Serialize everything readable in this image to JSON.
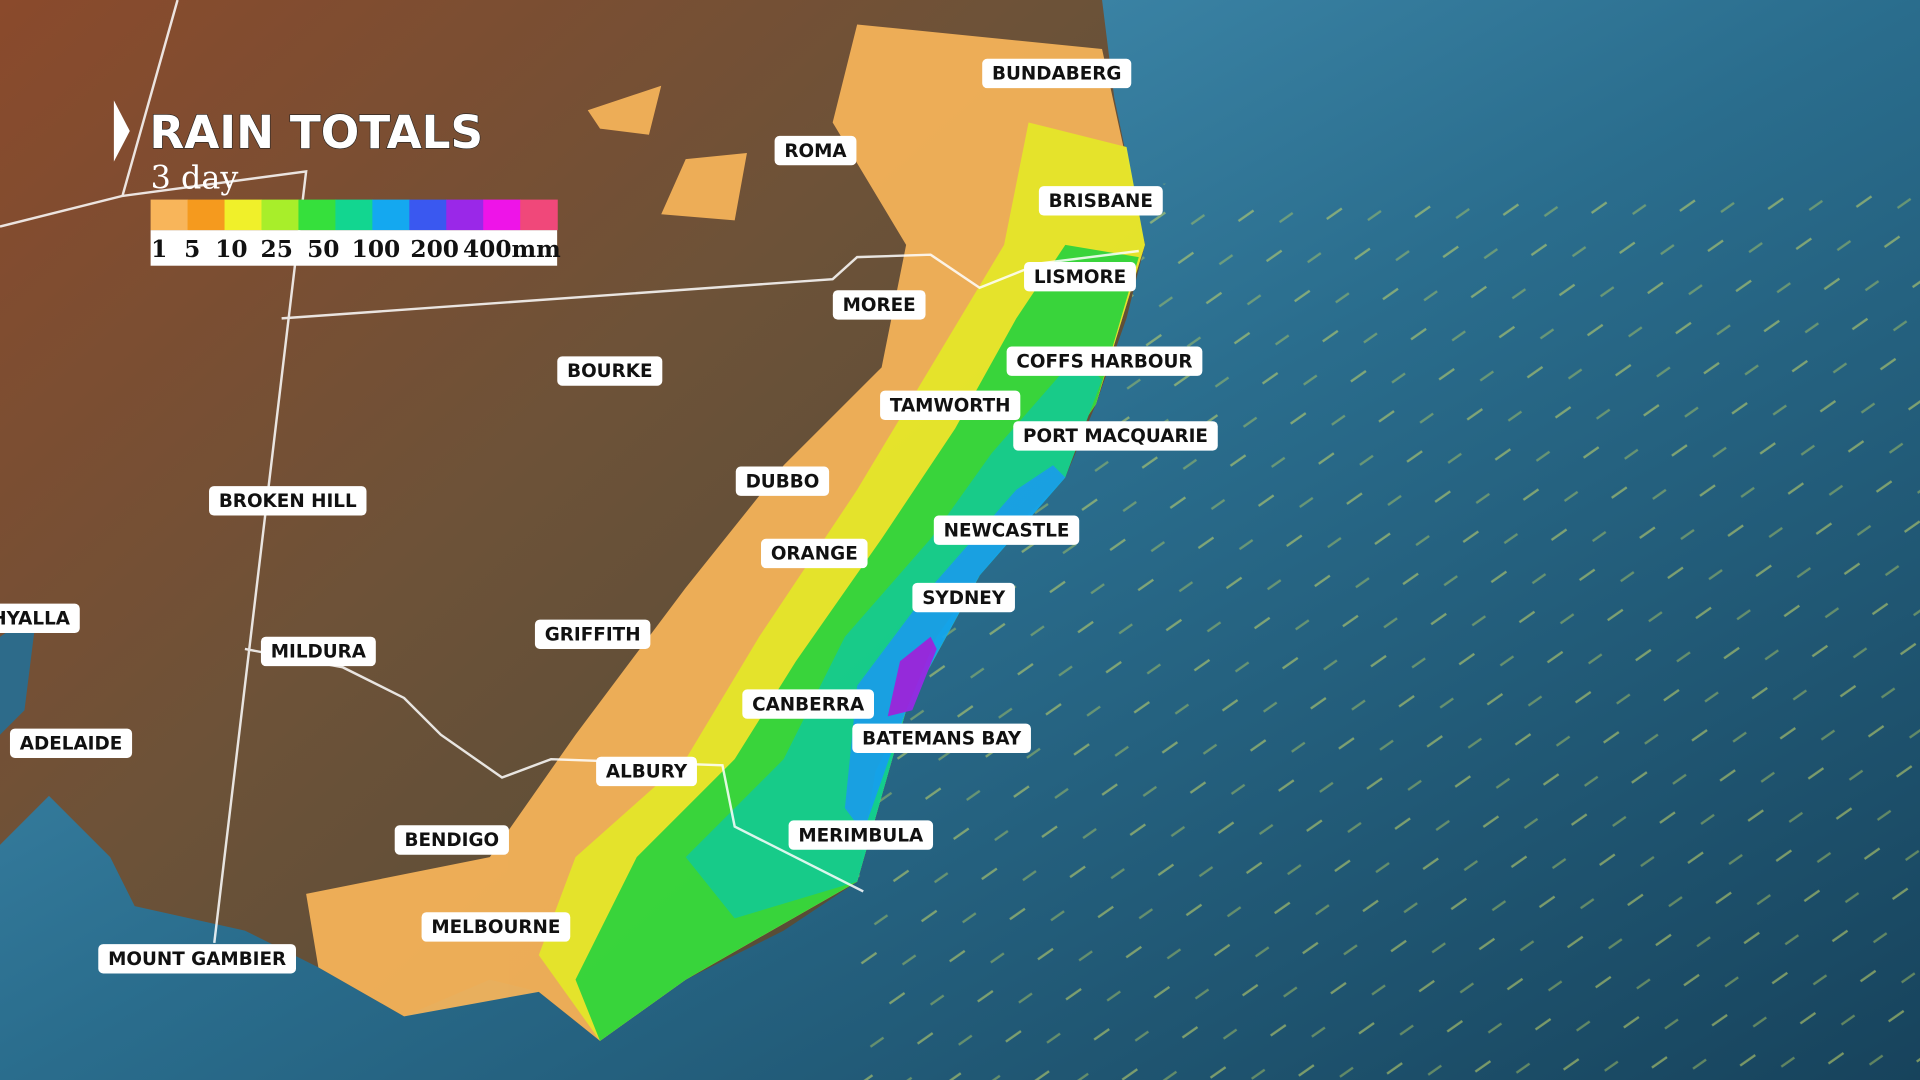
{
  "title": "RAIN TOTALS",
  "subtitle": "3 day",
  "legend": {
    "colors": [
      "#f8b55a",
      "#f59a1e",
      "#f0f02a",
      "#a8ee2a",
      "#36e03c",
      "#12d690",
      "#14a8f0",
      "#3a58f0",
      "#9a28e8",
      "#ee14e8",
      "#f0487a"
    ],
    "labels": [
      "1",
      "5",
      "10",
      "25",
      "50",
      "100",
      "200",
      "400mm"
    ]
  },
  "places": [
    {
      "label": "BUNDABERG"
    },
    {
      "label": "ROMA"
    },
    {
      "label": "BRISBANE"
    },
    {
      "label": "LISMORE"
    },
    {
      "label": "MOREE"
    },
    {
      "label": "COFFS HARBOUR"
    },
    {
      "label": "BOURKE"
    },
    {
      "label": "TAMWORTH"
    },
    {
      "label": "PORT MACQUARIE"
    },
    {
      "label": "DUBBO"
    },
    {
      "label": "BROKEN HILL"
    },
    {
      "label": "NEWCASTLE"
    },
    {
      "label": "ORANGE"
    },
    {
      "label": "SYDNEY"
    },
    {
      "label": "HYALLA"
    },
    {
      "label": "GRIFFITH"
    },
    {
      "label": "MILDURA"
    },
    {
      "label": "CANBERRA"
    },
    {
      "label": "ADELAIDE"
    },
    {
      "label": "BATEMANS BAY"
    },
    {
      "label": "ALBURY"
    },
    {
      "label": "MERIMBULA"
    },
    {
      "label": "BENDIGO"
    },
    {
      "label": "MELBOURNE"
    },
    {
      "label": "MOUNT GAMBIER"
    }
  ]
}
